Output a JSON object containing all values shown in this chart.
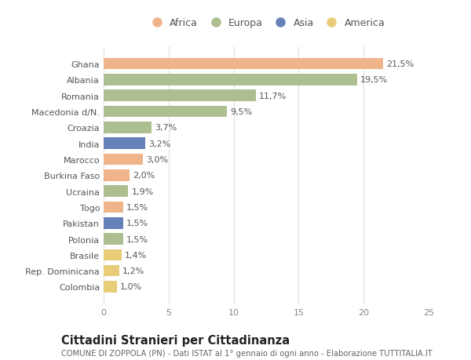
{
  "categories": [
    "Ghana",
    "Albania",
    "Romania",
    "Macedonia d/N.",
    "Croazia",
    "India",
    "Marocco",
    "Burkina Faso",
    "Ucraina",
    "Togo",
    "Pakistan",
    "Polonia",
    "Brasile",
    "Rep. Dominicana",
    "Colombia"
  ],
  "values": [
    21.5,
    19.5,
    11.7,
    9.5,
    3.7,
    3.2,
    3.0,
    2.0,
    1.9,
    1.5,
    1.5,
    1.5,
    1.4,
    1.2,
    1.0
  ],
  "labels": [
    "21,5%",
    "19,5%",
    "11,7%",
    "9,5%",
    "3,7%",
    "3,2%",
    "3,0%",
    "2,0%",
    "1,9%",
    "1,5%",
    "1,5%",
    "1,5%",
    "1,4%",
    "1,2%",
    "1,0%"
  ],
  "continent": [
    "Africa",
    "Europa",
    "Europa",
    "Europa",
    "Europa",
    "Asia",
    "Africa",
    "Africa",
    "Europa",
    "Africa",
    "Asia",
    "Europa",
    "America",
    "America",
    "America"
  ],
  "colors": {
    "Africa": "#F0B48A",
    "Europa": "#ADBF90",
    "Asia": "#6680B8",
    "America": "#E8CC78"
  },
  "legend_order": [
    "Africa",
    "Europa",
    "Asia",
    "America"
  ],
  "xlim": [
    0,
    25
  ],
  "xticks": [
    0,
    5,
    10,
    15,
    20,
    25
  ],
  "title": "Cittadini Stranieri per Cittadinanza",
  "subtitle": "COMUNE DI ZOPPOLA (PN) - Dati ISTAT al 1° gennaio di ogni anno - Elaborazione TUTTITALIA.IT",
  "background_color": "#ffffff",
  "grid_color": "#e0e0e0",
  "bar_height": 0.72,
  "label_fontsize": 8.0,
  "tick_fontsize": 8.0,
  "title_fontsize": 10.5,
  "subtitle_fontsize": 7.2
}
